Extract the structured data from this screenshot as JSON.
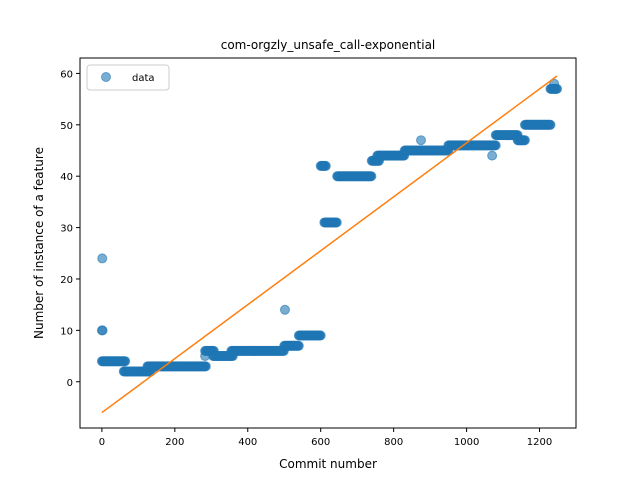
{
  "chart_data": {
    "type": "scatter",
    "title": "com-orgzly_unsafe_call-exponential",
    "xlabel": "Commit number",
    "ylabel": "Number of instance of a feature",
    "xlim": [
      -60,
      1300
    ],
    "ylim": [
      -9,
      63
    ],
    "xticks": [
      0,
      200,
      400,
      600,
      800,
      1000,
      1200
    ],
    "yticks": [
      0,
      10,
      20,
      30,
      40,
      50,
      60
    ],
    "grid": false,
    "legend": {
      "placement": "top-left",
      "entries": [
        "data"
      ]
    },
    "colors": {
      "data": "#1f77b4",
      "fit": "#ff7f0e"
    },
    "series": [
      {
        "name": "data",
        "kind": "scatter",
        "segments": [
          {
            "x_start": 0,
            "x_end": 3,
            "y": 10
          },
          {
            "x_start": 0,
            "x_end": 65,
            "y": 4
          },
          {
            "x_start": 60,
            "x_end": 135,
            "y": 2
          },
          {
            "x_start": 125,
            "x_end": 285,
            "y": 3
          },
          {
            "x_start": 283,
            "x_end": 308,
            "y": 6
          },
          {
            "x_start": 305,
            "x_end": 360,
            "y": 5
          },
          {
            "x_start": 355,
            "x_end": 500,
            "y": 6
          },
          {
            "x_start": 500,
            "x_end": 540,
            "y": 7
          },
          {
            "x_start": 540,
            "x_end": 600,
            "y": 9
          },
          {
            "x_start": 600,
            "x_end": 615,
            "y": 42
          },
          {
            "x_start": 610,
            "x_end": 645,
            "y": 31
          },
          {
            "x_start": 645,
            "x_end": 740,
            "y": 40
          },
          {
            "x_start": 740,
            "x_end": 760,
            "y": 43
          },
          {
            "x_start": 755,
            "x_end": 830,
            "y": 44
          },
          {
            "x_start": 830,
            "x_end": 950,
            "y": 45
          },
          {
            "x_start": 950,
            "x_end": 1080,
            "y": 46
          },
          {
            "x_start": 1080,
            "x_end": 1140,
            "y": 48
          },
          {
            "x_start": 1140,
            "x_end": 1160,
            "y": 47
          },
          {
            "x_start": 1160,
            "x_end": 1230,
            "y": 50
          },
          {
            "x_start": 1230,
            "x_end": 1248,
            "y": 57
          }
        ],
        "points": [
          {
            "x": 1,
            "y": 24
          },
          {
            "x": 283,
            "y": 5
          },
          {
            "x": 502,
            "y": 14
          },
          {
            "x": 875,
            "y": 47
          },
          {
            "x": 1070,
            "y": 44
          },
          {
            "x": 1240,
            "y": 58
          }
        ]
      },
      {
        "name": "",
        "kind": "line",
        "points": [
          {
            "x": 0,
            "y": -6
          },
          {
            "x": 1248,
            "y": 59.5
          }
        ]
      }
    ]
  }
}
